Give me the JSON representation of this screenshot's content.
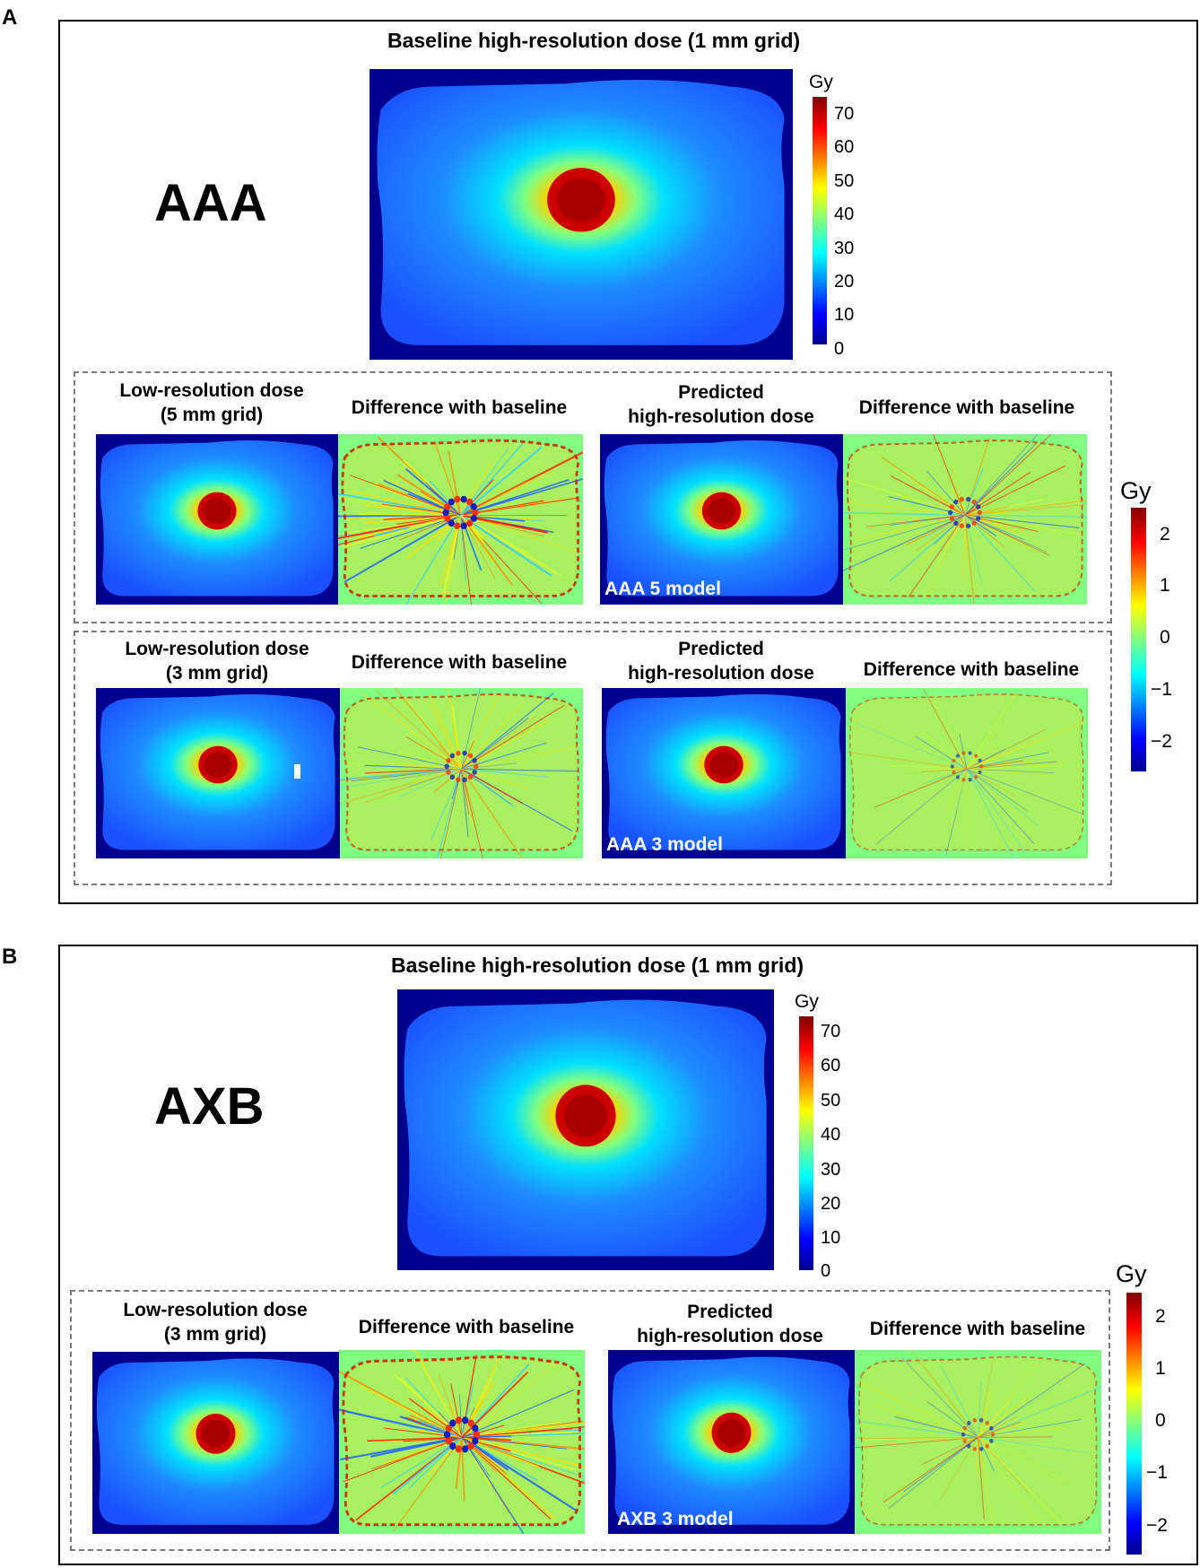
{
  "panel_a": {
    "letter": "A",
    "algorithm": "AAA",
    "baseline_title": "Baseline high-resolution dose (1 mm grid)",
    "dose_colorbar": {
      "unit": "Gy",
      "ticks": [
        "70",
        "60",
        "50",
        "40",
        "30",
        "20",
        "10",
        "0"
      ]
    },
    "row_5mm": {
      "low_res_title": [
        "Low-resolution dose",
        "(5 mm grid)"
      ],
      "diff_title_1": "Difference with baseline",
      "predicted_title": [
        "Predicted",
        "high-resolution dose"
      ],
      "diff_title_2": "Difference with baseline",
      "model_label": "AAA 5 model"
    },
    "row_3mm": {
      "low_res_title": [
        "Low-resolution dose",
        "(3 mm grid)"
      ],
      "diff_title_1": "Difference with baseline",
      "predicted_title": [
        "Predicted",
        "high-resolution dose"
      ],
      "diff_title_2": "Difference with baseline",
      "model_label": "AAA 3 model"
    },
    "diff_colorbar": {
      "unit": "Gy",
      "ticks": [
        "2",
        "1",
        "0",
        "−1",
        "−2"
      ]
    }
  },
  "panel_b": {
    "letter": "B",
    "algorithm": "AXB",
    "baseline_title": "Baseline high-resolution dose (1 mm grid)",
    "dose_colorbar": {
      "unit": "Gy",
      "ticks": [
        "70",
        "60",
        "50",
        "40",
        "30",
        "20",
        "10",
        "0"
      ]
    },
    "row_3mm": {
      "low_res_title": [
        "Low-resolution dose",
        "(3 mm grid)"
      ],
      "diff_title_1": "Difference with baseline",
      "predicted_title": [
        "Predicted",
        "high-resolution dose"
      ],
      "diff_title_2": "Difference with baseline",
      "model_label": "AXB 3 model"
    },
    "diff_colorbar": {
      "unit": "Gy",
      "ticks": [
        "2",
        "1",
        "0",
        "−1",
        "−2"
      ]
    }
  },
  "colors": {
    "background_dark_blue": "#00008f",
    "diff_background_green": "#80ff80",
    "dose_high": "#b00000",
    "dose_low": "#1e6aff"
  }
}
